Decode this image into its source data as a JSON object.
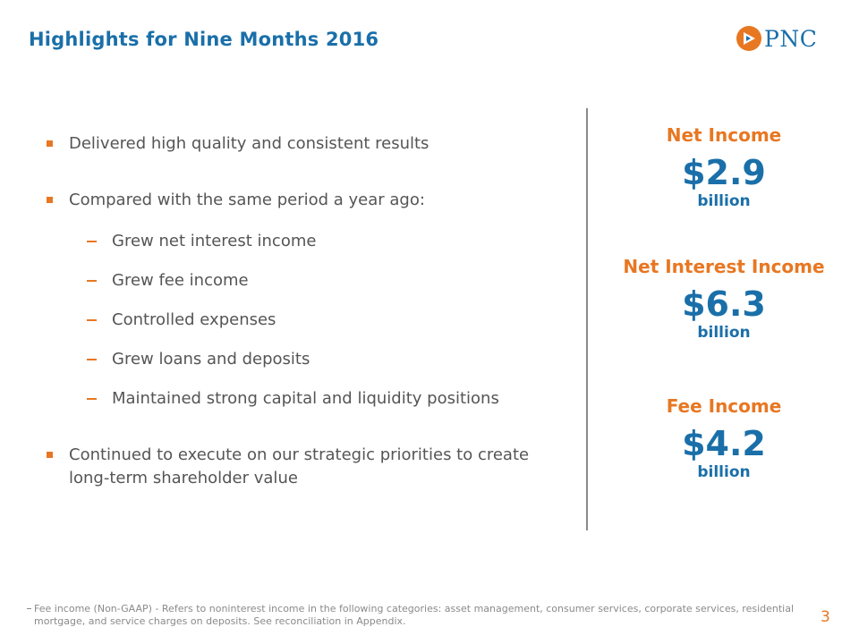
{
  "slide": {
    "title": "Highlights for Nine Months 2016",
    "logo_text": "PNC",
    "page_number": "3"
  },
  "bullets": [
    {
      "text": "Delivered high quality and consistent results"
    },
    {
      "text": "Compared with the same period a year ago:"
    },
    {
      "text": "Continued to execute on our strategic priorities to create long-term shareholder value"
    }
  ],
  "sub_bullets": [
    {
      "text": "Grew net interest income"
    },
    {
      "text": "Grew fee income"
    },
    {
      "text": "Controlled expenses"
    },
    {
      "text": "Grew loans and deposits"
    },
    {
      "text": "Maintained strong capital and liquidity positions"
    }
  ],
  "metrics": [
    {
      "label": "Net Income",
      "value": "$2.9",
      "unit": "billion"
    },
    {
      "label": "Net Interest Income",
      "value": "$6.3",
      "unit": "billion"
    },
    {
      "label": "Fee Income",
      "value": "$4.2",
      "unit": "billion"
    }
  ],
  "footnote": "Fee income (Non-GAAP) - Refers to noninterest income in the following categories: asset management, consumer services, corporate services, residential mortgage, and service charges on deposits.  See reconciliation in Appendix.",
  "colors": {
    "brand_blue": "#1a6fa9",
    "accent_orange": "#e87722",
    "body_gray": "#555555"
  }
}
